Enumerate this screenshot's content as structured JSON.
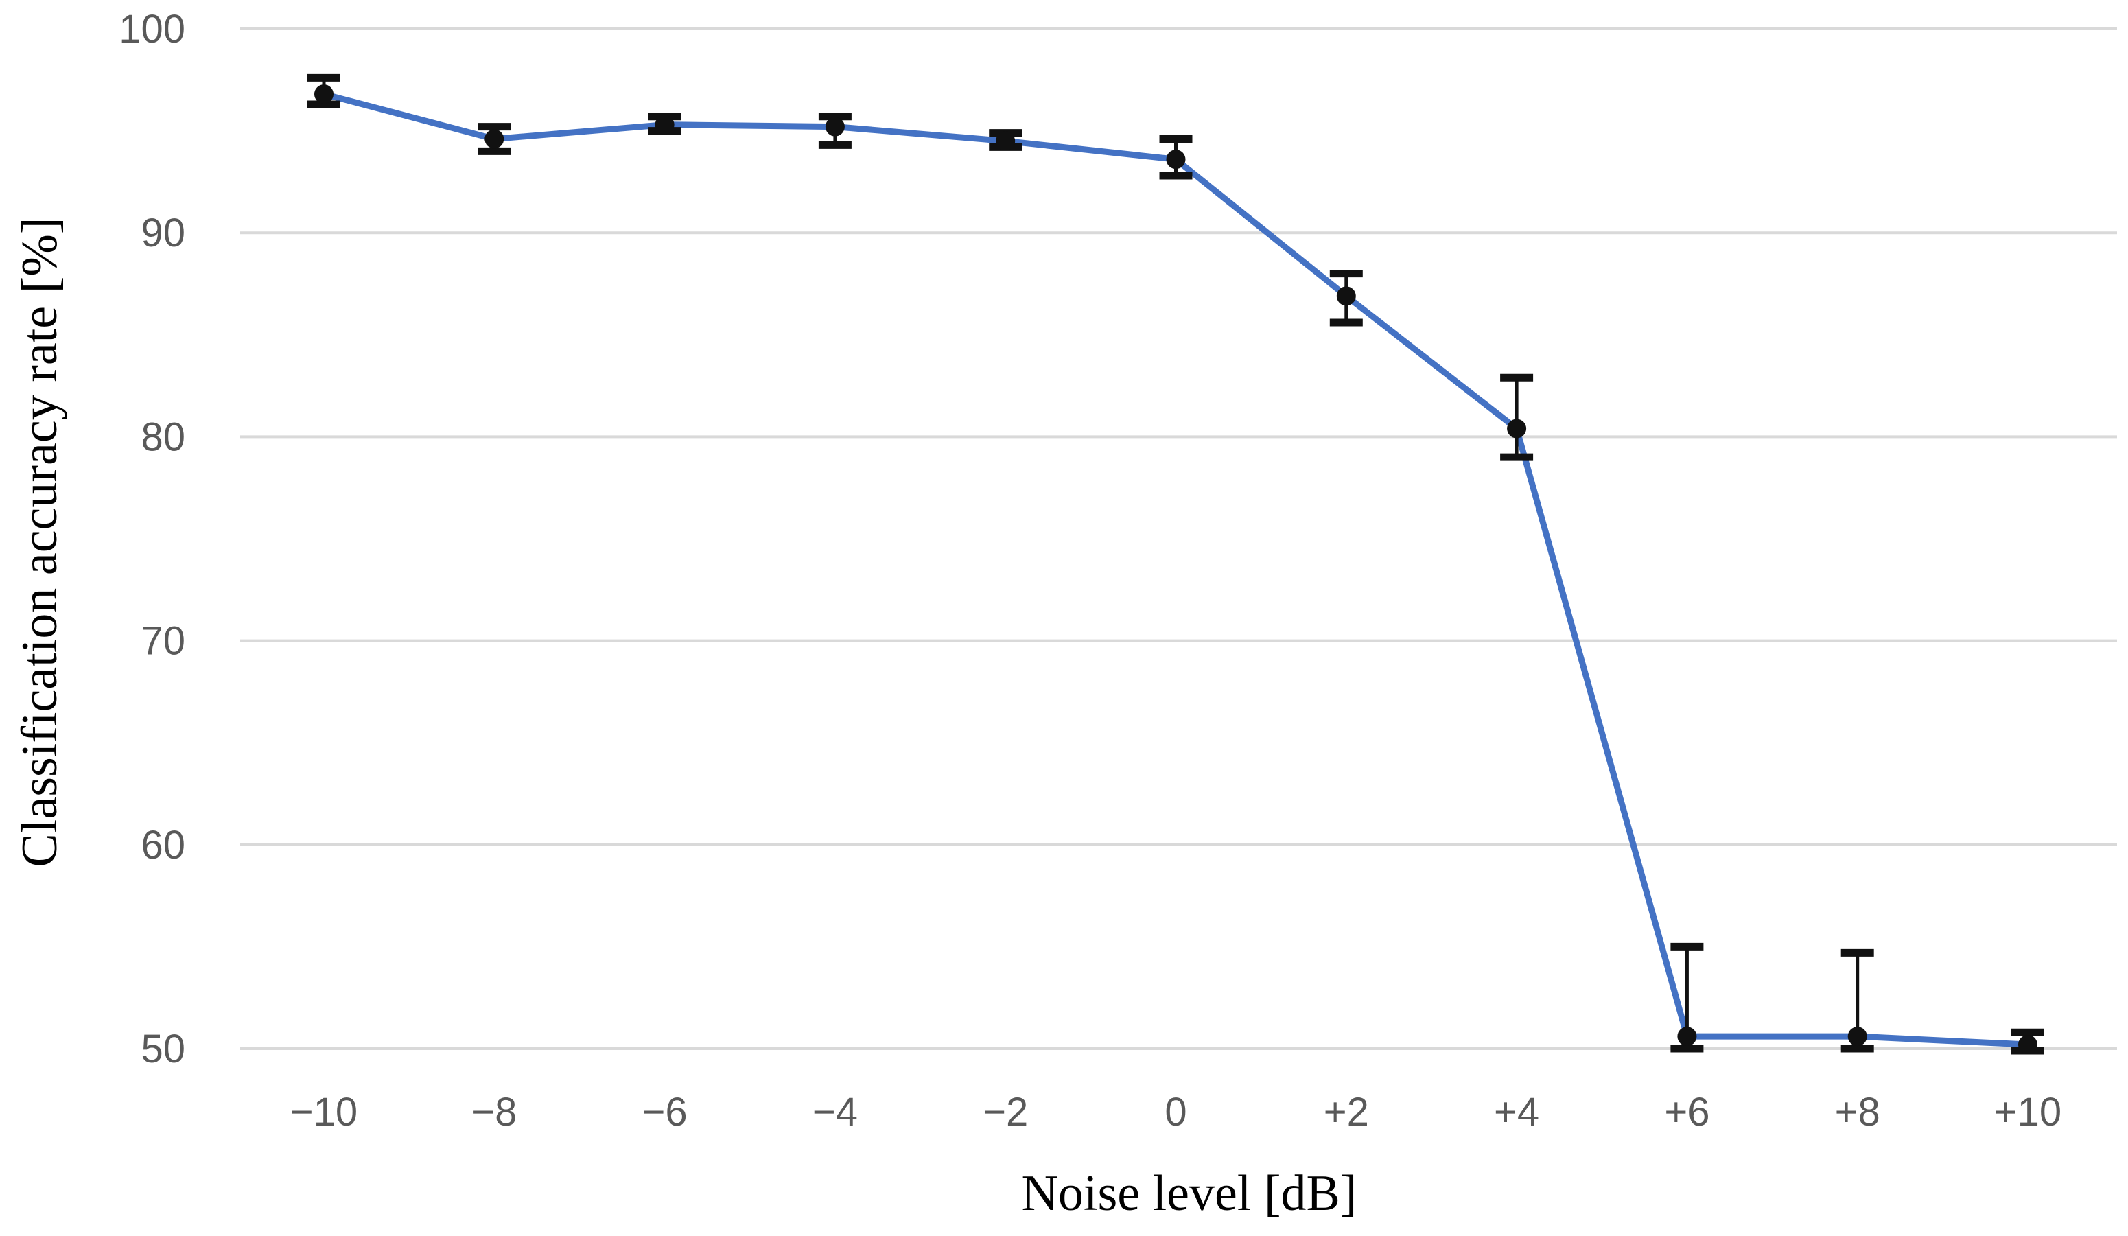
{
  "chart_data": {
    "type": "line",
    "title": "",
    "xlabel": "Noise level [dB]",
    "ylabel": "Classification accuracy rate [%]",
    "categories": [
      "−10",
      "−8",
      "−6",
      "−4",
      "−2",
      "0",
      "+2",
      "+4",
      "+6",
      "+8",
      "+10"
    ],
    "ylim": [
      50,
      100
    ],
    "yticks": [
      "50",
      "60",
      "70",
      "80",
      "90",
      "100"
    ],
    "grid": true,
    "legend": "none",
    "series": [
      {
        "values": [
          96.8,
          94.6,
          95.3,
          95.2,
          94.5,
          93.6,
          86.9,
          80.4,
          50.6,
          50.6,
          50.2
        ],
        "err_low": [
          96.3,
          94.0,
          95.0,
          94.3,
          94.2,
          92.8,
          85.6,
          79.0,
          50.0,
          50.0,
          49.9
        ],
        "err_high": [
          97.6,
          95.2,
          95.7,
          95.7,
          94.9,
          94.6,
          88.0,
          82.9,
          55.0,
          54.7,
          50.8
        ],
        "color": "#4472c4"
      }
    ]
  }
}
